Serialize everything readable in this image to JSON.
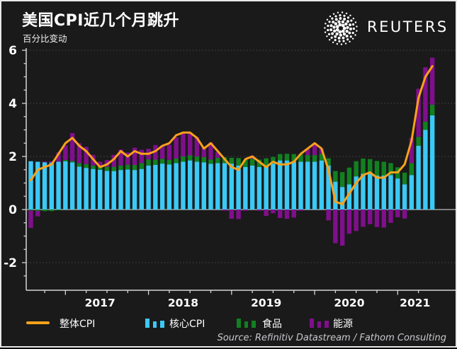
{
  "header": {
    "title": "美国CPI近几个月跳升",
    "subtitle": "百分比变动",
    "logo_text": "REUTERS"
  },
  "source": "Source: Refinitiv Datastream / Fathom Consulting",
  "colors": {
    "background": "#1a1a1a",
    "headline_line": "#f9a21b",
    "core_bar": "#3bc9f5",
    "food_bar": "#128021",
    "energy_bar": "#800f8c",
    "zero_line": "#a0a0a0",
    "grid": "#454545",
    "axis": "#d4d4d4",
    "text": "#ffffff"
  },
  "legend": [
    {
      "label": "整体CPI",
      "swatch": "line",
      "color": "#f9a21b"
    },
    {
      "label": "核心CPI",
      "swatch": "bars",
      "color": "#3bc9f5"
    },
    {
      "label": "食品",
      "swatch": "bars",
      "color": "#128021"
    },
    {
      "label": "能源",
      "swatch": "bars",
      "color": "#800f8c"
    }
  ],
  "chart_data": {
    "type": "bar",
    "subtype": "stacked-bars-with-line",
    "title": "美国CPI近几个月跳升",
    "ylabel": "百分比变动",
    "ylim": [
      -3,
      6.1
    ],
    "yticks": [
      -2,
      0,
      2,
      4,
      6
    ],
    "grid": "dotted-horizontal",
    "frequency": "monthly",
    "x_start": "2016-08",
    "x_end": "2021-06",
    "xticks": [
      "2017",
      "2018",
      "2019",
      "2020",
      "2021"
    ],
    "legend_position": "bottom",
    "series": [
      {
        "name": "整体CPI",
        "type": "line",
        "color": "#f9a21b",
        "values": [
          1.1,
          1.5,
          1.6,
          1.7,
          2.1,
          2.5,
          2.7,
          2.4,
          2.2,
          1.9,
          1.6,
          1.7,
          1.9,
          2.2,
          2.0,
          2.2,
          2.1,
          2.1,
          2.2,
          2.4,
          2.5,
          2.8,
          2.9,
          2.9,
          2.7,
          2.3,
          2.5,
          2.2,
          1.9,
          1.6,
          1.5,
          1.9,
          2.0,
          1.8,
          1.6,
          1.8,
          1.7,
          1.7,
          1.8,
          2.1,
          2.3,
          2.5,
          2.3,
          1.5,
          0.3,
          0.2,
          0.6,
          1.0,
          1.3,
          1.4,
          1.2,
          1.2,
          1.4,
          1.4,
          1.7,
          2.6,
          4.2,
          5.0,
          5.4
        ]
      },
      {
        "name": "核心CPI",
        "type": "bar",
        "color": "#3bc9f5",
        "values": [
          1.82,
          1.8,
          1.78,
          1.77,
          1.8,
          1.82,
          1.78,
          1.62,
          1.57,
          1.53,
          1.5,
          1.46,
          1.45,
          1.49,
          1.51,
          1.49,
          1.53,
          1.66,
          1.68,
          1.73,
          1.7,
          1.75,
          1.8,
          1.85,
          1.8,
          1.78,
          1.72,
          1.75,
          1.75,
          1.73,
          1.66,
          1.6,
          1.66,
          1.6,
          1.66,
          1.73,
          1.85,
          1.85,
          1.8,
          1.8,
          1.8,
          1.8,
          1.85,
          1.66,
          1.05,
          0.85,
          0.95,
          1.25,
          1.35,
          1.35,
          1.28,
          1.28,
          1.3,
          1.17,
          0.95,
          1.3,
          2.4,
          3.0,
          3.55
        ]
      },
      {
        "name": "食品",
        "type": "bar",
        "color": "#128021",
        "values": [
          -0.03,
          -0.05,
          -0.06,
          -0.06,
          -0.03,
          0.05,
          0.05,
          0.13,
          0.14,
          0.13,
          0.13,
          0.15,
          0.16,
          0.17,
          0.18,
          0.19,
          0.22,
          0.23,
          0.2,
          0.18,
          0.17,
          0.17,
          0.2,
          0.19,
          0.2,
          0.2,
          0.17,
          0.2,
          0.22,
          0.22,
          0.28,
          0.27,
          0.25,
          0.28,
          0.27,
          0.25,
          0.24,
          0.25,
          0.29,
          0.28,
          0.25,
          0.25,
          0.25,
          0.27,
          0.4,
          0.56,
          0.63,
          0.57,
          0.57,
          0.55,
          0.55,
          0.52,
          0.45,
          0.42,
          0.44,
          0.45,
          0.34,
          0.31,
          0.4
        ]
      },
      {
        "name": "能源",
        "type": "bar",
        "color": "#800f8c",
        "values": [
          -0.66,
          -0.21,
          0.03,
          0.05,
          0.35,
          0.55,
          1.05,
          0.75,
          0.65,
          0.4,
          0.17,
          0.25,
          0.45,
          0.6,
          0.46,
          0.65,
          0.5,
          0.4,
          0.55,
          0.5,
          0.57,
          0.8,
          0.85,
          0.85,
          0.72,
          0.35,
          0.63,
          0.22,
          -0.05,
          -0.35,
          -0.36,
          -0.05,
          0.12,
          -0.05,
          -0.24,
          -0.14,
          -0.32,
          -0.35,
          -0.3,
          -0.05,
          0.24,
          0.45,
          0.2,
          -0.41,
          -1.27,
          -1.36,
          -0.91,
          -0.81,
          -0.65,
          -0.55,
          -0.66,
          -0.68,
          -0.5,
          -0.29,
          -0.34,
          0.95,
          1.81,
          2.05,
          1.77
        ]
      }
    ]
  }
}
